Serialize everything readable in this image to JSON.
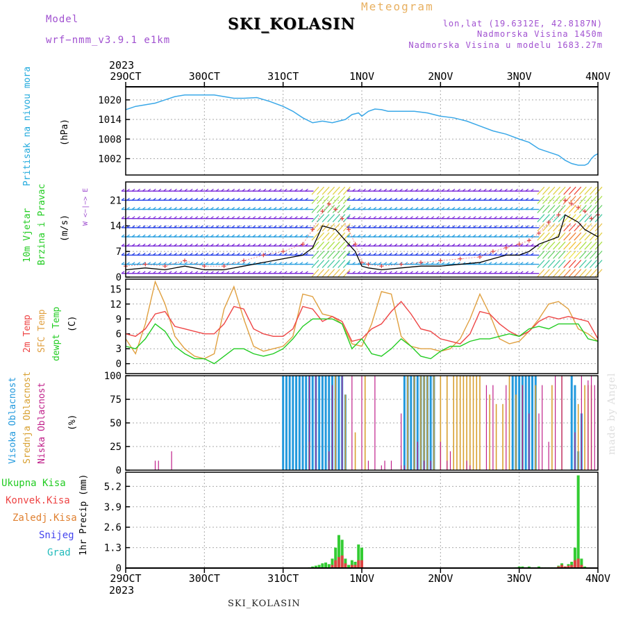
{
  "header": {
    "model_label": "Model",
    "model_version": "wrf−nmm_v3.9.1  e1km",
    "title": "SKI_KOLASIN",
    "meteogram_label": "Meteogram",
    "lonlat": "lon,lat (19.6312E, 42.8187N)",
    "elevation": "Nadmorska Visina 1450m",
    "elevation_model": "Nadmorska Visina u modelu 1683.27m"
  },
  "footer": {
    "station": "SKI_KOLASIN",
    "credit": "made by Angel"
  },
  "time_axis": {
    "year_label": "2023",
    "ticks": [
      "29OCT",
      "30OCT",
      "31OCT",
      "1NOV",
      "2NOV",
      "3NOV",
      "4NOV"
    ],
    "hours_total": 144
  },
  "colors": {
    "pressure": "#3aa8e8",
    "temp2m": "#ee4444",
    "sfc": "#e0a040",
    "dewpt": "#22cc22",
    "cloud_high": "#2299dd",
    "cloud_mid": "#d8a030",
    "cloud_low": "#c0208a",
    "precip_total": "#33cc33",
    "precip_conv": "#dd4444",
    "wind_max_marker": "#dd4444",
    "label_cyan": "#22aadd",
    "label_green": "#22cc22",
    "label_purple": "#a050d0",
    "label_red": "#ee4444",
    "label_orange": "#e08030",
    "label_blue": "#4444ee",
    "label_teal": "#22bbbb"
  },
  "chart_data": [
    {
      "type": "line",
      "panel": "pressure",
      "ylabel": "Pritisak na nivou mora",
      "unit": "(hPa)",
      "yticks": [
        1002,
        1008,
        1014,
        1020
      ],
      "ylim": [
        997,
        1024
      ],
      "series": [
        {
          "x": [
            0,
            3,
            6,
            9,
            12,
            15,
            18,
            21,
            24,
            27,
            30,
            33,
            36,
            40,
            44,
            48,
            51,
            54,
            57,
            60,
            63,
            65,
            67,
            69,
            71,
            72,
            74,
            76,
            78,
            80,
            84,
            88,
            92,
            96,
            100,
            104,
            108,
            112,
            116,
            120,
            123,
            126,
            129,
            132,
            134,
            136,
            138,
            140,
            141,
            142,
            143,
            144
          ],
          "values": [
            1017,
            1018,
            1018.5,
            1019,
            1020,
            1021,
            1021.5,
            1021.5,
            1021.5,
            1021.5,
            1021,
            1020.5,
            1020.5,
            1020.7,
            1019.5,
            1018,
            1016.5,
            1014.5,
            1013,
            1013.5,
            1013,
            1013.5,
            1014,
            1015.5,
            1016,
            1015,
            1016.5,
            1017.2,
            1017,
            1016.5,
            1016.5,
            1016.5,
            1016,
            1015,
            1014.5,
            1013.5,
            1012,
            1010.5,
            1009.5,
            1008,
            1007,
            1005,
            1004,
            1003,
            1001.5,
            1000.5,
            1000,
            1000,
            1000.5,
            1002,
            1003,
            1003.5
          ]
        }
      ]
    },
    {
      "type": "line",
      "panel": "wind",
      "ylabel": "10m Vjetar Brzina i Pravac",
      "unit": "(m/s)",
      "compass_label": "W <−|−> E",
      "yticks": [
        0,
        7,
        14,
        21
      ],
      "ylim": [
        0,
        26
      ],
      "series": [
        {
          "role": "speed",
          "x": [
            0,
            6,
            12,
            18,
            24,
            30,
            36,
            42,
            48,
            54,
            57,
            60,
            62,
            64,
            66,
            68,
            70,
            72,
            74,
            78,
            84,
            90,
            96,
            102,
            108,
            112,
            116,
            120,
            123,
            126,
            129,
            132,
            134,
            136,
            138,
            140,
            142,
            144
          ],
          "values": [
            2,
            2.5,
            2,
            3,
            2,
            2,
            3,
            4,
            5,
            6,
            8,
            14,
            13.5,
            13,
            11,
            9,
            7,
            3,
            2.5,
            2,
            2.5,
            3,
            3,
            3.5,
            4,
            5,
            6,
            6,
            7,
            9,
            10,
            11,
            17,
            16,
            15,
            13,
            12,
            11
          ]
        },
        {
          "role": "max",
          "x": [
            0,
            6,
            12,
            18,
            24,
            30,
            36,
            42,
            48,
            54,
            57,
            60,
            62,
            64,
            66,
            68,
            70,
            72,
            74,
            78,
            84,
            90,
            96,
            102,
            108,
            112,
            116,
            120,
            123,
            126,
            129,
            132,
            134,
            136,
            138,
            140,
            142,
            144
          ],
          "values": [
            3,
            3.5,
            3,
            4.5,
            3,
            3,
            4.5,
            6,
            7,
            9,
            13,
            18,
            20,
            18.5,
            16,
            13,
            9,
            4,
            3.5,
            3,
            3.5,
            4,
            4.5,
            5,
            5.5,
            7,
            8,
            9,
            10,
            12,
            15,
            17,
            21,
            20,
            19,
            18,
            16,
            17
          ]
        }
      ]
    },
    {
      "type": "line",
      "panel": "temperature",
      "labels": [
        "2m Temp",
        "SFC Temp",
        "dewpt Temp"
      ],
      "unit": "(C)",
      "yticks": [
        0,
        3,
        6,
        9,
        12,
        15
      ],
      "ylim": [
        -2,
        17
      ],
      "x": [
        0,
        3,
        6,
        9,
        12,
        15,
        18,
        21,
        24,
        27,
        30,
        33,
        36,
        39,
        42,
        45,
        48,
        51,
        54,
        57,
        60,
        63,
        66,
        69,
        72,
        75,
        78,
        81,
        84,
        87,
        90,
        93,
        96,
        99,
        102,
        105,
        108,
        111,
        114,
        117,
        120,
        123,
        126,
        129,
        132,
        135,
        138,
        141,
        144
      ],
      "series": [
        {
          "name": "2m Temp",
          "values": [
            6,
            5.5,
            7,
            10,
            10.5,
            7.5,
            7,
            6.5,
            6,
            6,
            8,
            11.5,
            11,
            7,
            6,
            5.5,
            5.5,
            7,
            11.5,
            11,
            8.5,
            9.5,
            8.5,
            4.5,
            5,
            7,
            8,
            10.5,
            12.5,
            10,
            7,
            6.5,
            5,
            4.5,
            4,
            6,
            10.5,
            10,
            8,
            6.5,
            5.5,
            6.5,
            8.5,
            9.5,
            9,
            9.5,
            9,
            8.5,
            5
          ]
        },
        {
          "name": "SFC Temp",
          "values": [
            5,
            2,
            8,
            16.5,
            12,
            5.5,
            3,
            1.5,
            1,
            2,
            11,
            15.5,
            9,
            3.5,
            2.5,
            3,
            3.5,
            5.5,
            14,
            13.5,
            10,
            9.5,
            8,
            4,
            3.5,
            8,
            14.5,
            14,
            5.5,
            3.5,
            3,
            3,
            2.5,
            3,
            5,
            9,
            14,
            10,
            5,
            4,
            4.5,
            6.5,
            9,
            12,
            12.5,
            11,
            7,
            6,
            4.5
          ]
        },
        {
          "name": "dewpt Temp",
          "values": [
            3.5,
            3,
            5,
            8,
            6.5,
            3.5,
            2,
            1,
            1,
            0,
            1.5,
            3,
            3,
            2,
            1.5,
            2,
            3,
            5,
            7.5,
            9,
            9,
            9,
            8,
            3,
            5,
            2,
            1.5,
            3,
            5,
            3.5,
            1.5,
            1,
            2.5,
            3.5,
            3.5,
            4.5,
            5,
            5,
            5.5,
            6,
            5.5,
            7,
            7.5,
            7,
            8,
            8,
            8,
            5,
            4.5
          ]
        }
      ]
    },
    {
      "type": "bar",
      "panel": "clouds",
      "labels": [
        "Visoka Oblacnost",
        "Srednja Oblacnost",
        "Niska Oblacnost"
      ],
      "unit": "(%)",
      "yticks": [
        0,
        25,
        50,
        75,
        100
      ],
      "ylim": [
        0,
        100
      ],
      "series": [
        {
          "name": "Visoka Oblacnost",
          "x": [
            48,
            49,
            50,
            51,
            52,
            53,
            54,
            55,
            56,
            57,
            58,
            59,
            60,
            61,
            62,
            63,
            64,
            65,
            66,
            67,
            85,
            86,
            87,
            88,
            89,
            90,
            91,
            92,
            93,
            94,
            118,
            119,
            120,
            121,
            122,
            123,
            124,
            125,
            136,
            137,
            138,
            139
          ],
          "values": [
            100,
            100,
            100,
            100,
            100,
            100,
            100,
            100,
            100,
            100,
            100,
            100,
            100,
            100,
            100,
            100,
            100,
            100,
            100,
            80,
            100,
            100,
            100,
            100,
            100,
            100,
            100,
            100,
            100,
            100,
            100,
            100,
            100,
            100,
            100,
            100,
            100,
            100,
            100,
            90,
            20,
            60
          ]
        },
        {
          "name": "Srednja Oblacnost",
          "x": [
            56,
            62,
            64,
            67,
            70,
            73,
            84,
            86,
            88,
            90,
            91,
            92,
            94,
            96,
            98,
            100,
            101,
            102,
            103,
            104,
            105,
            106,
            107,
            108,
            111,
            113,
            115,
            117,
            119,
            121,
            125,
            130,
            133,
            138,
            140,
            141,
            142
          ],
          "values": [
            30,
            10,
            100,
            80,
            40,
            100,
            5,
            100,
            100,
            100,
            100,
            100,
            100,
            100,
            100,
            100,
            100,
            100,
            100,
            100,
            100,
            100,
            100,
            100,
            80,
            70,
            70,
            100,
            80,
            90,
            90,
            90,
            100,
            70,
            90,
            90,
            90
          ]
        },
        {
          "name": "Niska Oblacnost",
          "x": [
            9,
            10,
            14,
            56,
            58,
            62,
            63,
            66,
            69,
            72,
            74,
            76,
            78,
            79,
            81,
            84,
            85,
            89,
            91,
            93,
            96,
            98,
            99,
            104,
            105,
            110,
            112,
            116,
            121,
            123,
            126,
            127,
            129,
            131,
            133,
            137,
            139,
            141,
            142,
            143,
            144
          ],
          "values": [
            10,
            10,
            20,
            100,
            100,
            20,
            90,
            100,
            100,
            100,
            10,
            100,
            5,
            10,
            10,
            60,
            5,
            30,
            10,
            10,
            30,
            10,
            20,
            10,
            5,
            90,
            90,
            90,
            90,
            60,
            60,
            90,
            30,
            100,
            100,
            40,
            100,
            95,
            100,
            90,
            95
          ]
        }
      ]
    },
    {
      "type": "bar",
      "panel": "precipitation",
      "labels": [
        "Ukupna Kisa",
        "Konvek.Kisa",
        "Zaledj.Kisa",
        "Snijeg",
        "Grad"
      ],
      "unit": "1hr Precip (mm)",
      "yticks": [
        0,
        1.3,
        2.6,
        3.9,
        5.2
      ],
      "ylim": [
        0,
        6.1
      ],
      "series": [
        {
          "name": "Ukupna Kisa",
          "x": [
            56,
            57,
            58,
            59,
            60,
            61,
            62,
            63,
            64,
            65,
            66,
            67,
            68,
            69,
            70,
            71,
            72,
            119,
            120,
            121,
            122,
            123,
            124,
            125,
            126,
            127,
            128,
            129,
            130,
            131,
            132,
            133,
            134,
            135,
            136,
            137,
            138,
            139,
            140
          ],
          "values": [
            0.05,
            0.1,
            0.15,
            0.2,
            0.3,
            0.35,
            0.25,
            0.6,
            1.3,
            2.1,
            1.8,
            0.6,
            0.2,
            0.5,
            0.4,
            1.5,
            1.3,
            0.05,
            0.1,
            0.1,
            0.05,
            0.1,
            0.05,
            0.05,
            0.1,
            0.05,
            0.05,
            0.05,
            0.05,
            0.05,
            0.15,
            0.3,
            0.1,
            0.25,
            0.4,
            1.3,
            5.9,
            0.6,
            0.1
          ]
        },
        {
          "name": "Konvek.Kisa",
          "x": [
            63,
            64,
            65,
            66,
            67,
            69,
            70,
            71,
            72,
            132,
            133,
            134,
            135,
            136,
            137,
            138,
            139
          ],
          "values": [
            0.2,
            0.5,
            0.7,
            0.8,
            0.3,
            0.2,
            0.2,
            0.5,
            0.5,
            0.1,
            0.2,
            0.1,
            0.15,
            0.2,
            0.5,
            0.6,
            0.2
          ]
        }
      ]
    }
  ]
}
